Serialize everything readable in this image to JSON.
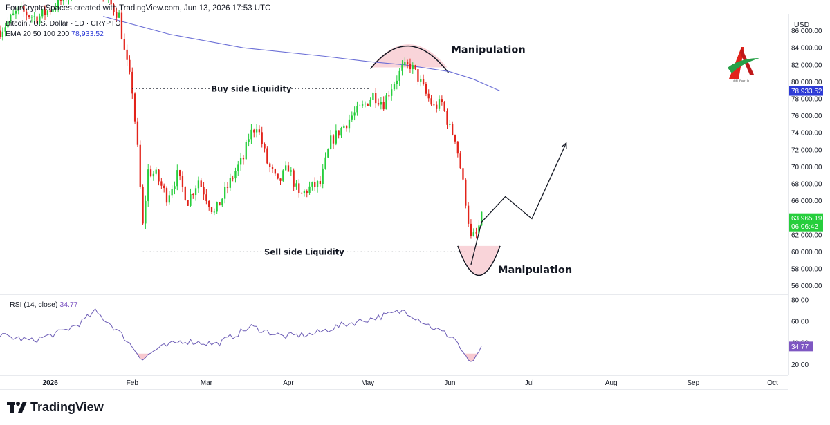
{
  "header": {
    "created_by": "FourCryptoSpaces created with TradingView.com, Jun 13, 2026 17:53 UTC",
    "symbol": "Bitcoin / U.S. Dollar · 1D · CRYPTO",
    "ema_label": "EMA 20 50 100 200",
    "ema_value": "78,933.52"
  },
  "currency": "USD",
  "rsi": {
    "label": "RSI (14, close)",
    "value": "34.77"
  },
  "footer": {
    "brand": "TradingView"
  },
  "colors": {
    "up": "#26ce3c",
    "down": "#e2231a",
    "ema": "#6b6fd6",
    "rsi": "#6b5bb5",
    "zone": "#f8c9d0",
    "ema_badge": "#2e3bd6",
    "price_badge": "#26ce3c",
    "rsi_badge": "#7e57c2"
  },
  "chart_data": [
    {
      "type": "candlestick",
      "title": "Bitcoin / U.S. Dollar · 1D · CRYPTO",
      "ylim": [
        55000,
        88000
      ],
      "y_ticks": [
        "56,000.00",
        "58,000.00",
        "60,000.00",
        "62,000.00",
        "64,000.00",
        "66,000.00",
        "68,000.00",
        "70,000.00",
        "72,000.00",
        "74,000.00",
        "76,000.00",
        "78,000.00",
        "80,000.00",
        "82,000.00",
        "84,000.00",
        "86,000.00"
      ],
      "x_ticks": [
        "2026",
        "Feb",
        "Mar",
        "Apr",
        "May",
        "Jun",
        "Jul",
        "Aug",
        "Sep",
        "Oct"
      ],
      "x_range": [
        "2025-12-13",
        "2026-10-07"
      ],
      "close_series": [
        [
          "2025-12-13",
          86000
        ],
        [
          "2025-12-20",
          88400
        ],
        [
          "2025-12-27",
          87500
        ],
        [
          "2026-01-03",
          89000
        ],
        [
          "2026-01-10",
          90800
        ],
        [
          "2026-01-17",
          91500
        ],
        [
          "2026-01-24",
          89000
        ],
        [
          "2026-01-27",
          87800
        ],
        [
          "2026-01-29",
          83500
        ],
        [
          "2026-02-01",
          79000
        ],
        [
          "2026-02-03",
          72000
        ],
        [
          "2026-02-05",
          63000
        ],
        [
          "2026-02-07",
          69500
        ],
        [
          "2026-02-10",
          69000
        ],
        [
          "2026-02-14",
          66500
        ],
        [
          "2026-02-18",
          69000
        ],
        [
          "2026-02-22",
          66000
        ],
        [
          "2026-02-26",
          68500
        ],
        [
          "2026-03-01",
          66500
        ],
        [
          "2026-03-04",
          64500
        ],
        [
          "2026-03-08",
          67000
        ],
        [
          "2026-03-12",
          69500
        ],
        [
          "2026-03-15",
          71000
        ],
        [
          "2026-03-17",
          73500
        ],
        [
          "2026-03-20",
          75000
        ],
        [
          "2026-03-24",
          70500
        ],
        [
          "2026-03-28",
          68000
        ],
        [
          "2026-04-01",
          70000
        ],
        [
          "2026-04-05",
          66500
        ],
        [
          "2026-04-09",
          67500
        ],
        [
          "2026-04-13",
          68000
        ],
        [
          "2026-04-17",
          73000
        ],
        [
          "2026-04-21",
          74500
        ],
        [
          "2026-04-25",
          76000
        ],
        [
          "2026-04-29",
          77000
        ],
        [
          "2026-05-03",
          78500
        ],
        [
          "2026-05-07",
          77500
        ],
        [
          "2026-05-10",
          79500
        ],
        [
          "2026-05-14",
          81500
        ],
        [
          "2026-05-17",
          82000
        ],
        [
          "2026-05-20",
          80500
        ],
        [
          "2026-05-23",
          78500
        ],
        [
          "2026-05-26",
          77000
        ],
        [
          "2026-05-29",
          77500
        ],
        [
          "2026-06-01",
          74500
        ],
        [
          "2026-06-03",
          73500
        ],
        [
          "2026-06-05",
          70000
        ],
        [
          "2026-06-07",
          66000
        ],
        [
          "2026-06-09",
          61500
        ],
        [
          "2026-06-11",
          62000
        ],
        [
          "2026-06-13",
          63965
        ]
      ],
      "ema_series": [
        [
          "2026-01-21",
          87700
        ],
        [
          "2026-02-15",
          85600
        ],
        [
          "2026-03-15",
          84000
        ],
        [
          "2026-04-15",
          83000
        ],
        [
          "2026-05-01",
          82400
        ],
        [
          "2026-05-15",
          82000
        ],
        [
          "2026-06-01",
          81200
        ],
        [
          "2026-06-10",
          80300
        ],
        [
          "2026-06-20",
          78933
        ]
      ],
      "price_badge": {
        "value": "63,965.19",
        "countdown": "06:06:42"
      },
      "ema_badge": "78,933.52",
      "annotations": {
        "buy_side": {
          "label": "Buy side Liquidity",
          "price": 79200
        },
        "sell_side": {
          "label": "Sell side Liquidity",
          "price": 60000
        },
        "top_label": "Manipulation",
        "bottom_label": "Manipulation",
        "projection": [
          [
            "2026-06-09",
            58500
          ],
          [
            "2026-06-13",
            63500
          ],
          [
            "2026-06-22",
            66500
          ],
          [
            "2026-07-02",
            63900
          ],
          [
            "2026-07-15",
            72800
          ]
        ]
      }
    },
    {
      "type": "line",
      "title": "RSI (14, close)",
      "ylim": [
        10,
        85
      ],
      "y_ticks": [
        "20.00",
        "40.00",
        "60.00",
        "80.00"
      ],
      "last_value": "34.77",
      "series": [
        [
          "2025-12-13",
          47
        ],
        [
          "2025-12-25",
          42
        ],
        [
          "2026-01-05",
          50
        ],
        [
          "2026-01-12",
          58
        ],
        [
          "2026-01-18",
          69
        ],
        [
          "2026-01-24",
          57
        ],
        [
          "2026-01-29",
          45
        ],
        [
          "2026-02-05",
          25
        ],
        [
          "2026-02-10",
          34
        ],
        [
          "2026-02-20",
          42
        ],
        [
          "2026-03-05",
          39
        ],
        [
          "2026-03-18",
          55
        ],
        [
          "2026-03-30",
          46
        ],
        [
          "2026-04-10",
          48
        ],
        [
          "2026-04-22",
          57
        ],
        [
          "2026-05-05",
          64
        ],
        [
          "2026-05-15",
          70
        ],
        [
          "2026-05-25",
          55
        ],
        [
          "2026-06-03",
          44
        ],
        [
          "2026-06-08",
          22
        ],
        [
          "2026-06-11",
          26
        ],
        [
          "2026-06-13",
          34.77
        ]
      ]
    }
  ]
}
